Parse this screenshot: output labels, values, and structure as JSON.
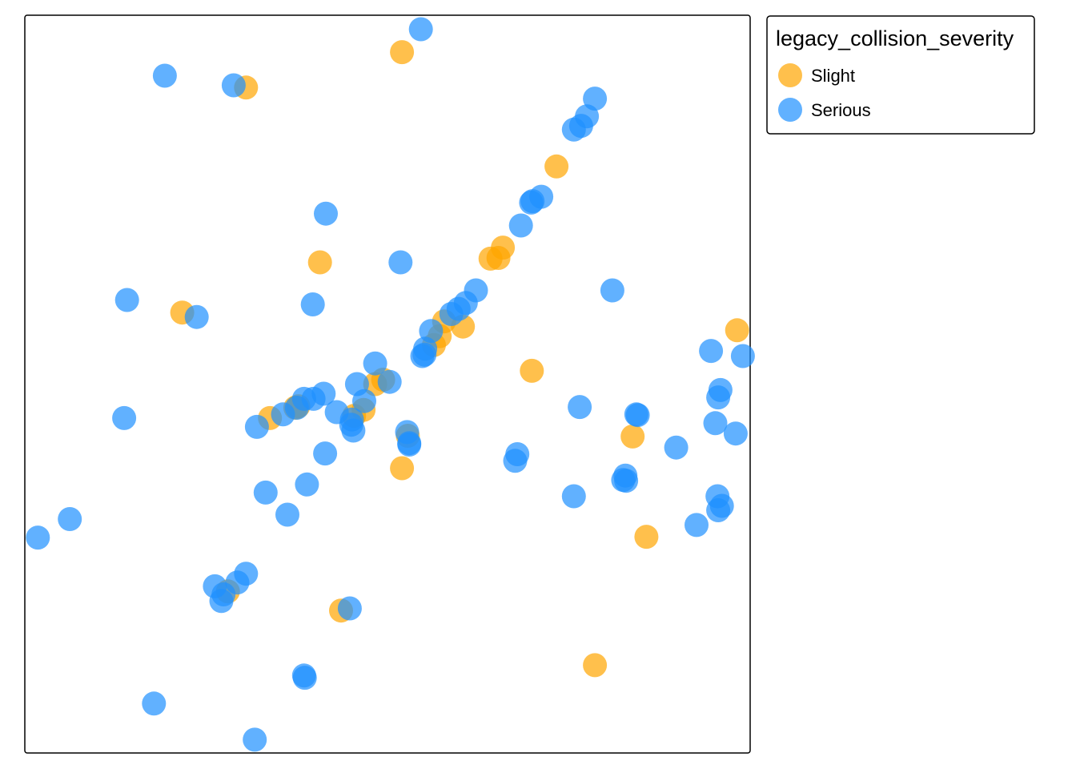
{
  "colors": {
    "Slight": "#FFA500",
    "Serious": "#1E90FF"
  },
  "chart_data": {
    "type": "scatter",
    "grid": false,
    "axes_shown": false,
    "xlim": [
      0,
      1
    ],
    "ylim": [
      0,
      1
    ],
    "legend": {
      "title": "legacy_collision_severity",
      "placement": "right",
      "entries": [
        "Slight",
        "Serious"
      ]
    },
    "series": [
      {
        "name": "Slight",
        "points": [
          [
            0.52,
            0.95
          ],
          [
            0.305,
            0.902
          ],
          [
            0.407,
            0.665
          ],
          [
            0.217,
            0.597
          ],
          [
            0.733,
            0.795
          ],
          [
            0.653,
            0.671
          ],
          [
            0.642,
            0.67
          ],
          [
            0.659,
            0.685
          ],
          [
            0.604,
            0.578
          ],
          [
            0.578,
            0.585
          ],
          [
            0.572,
            0.565
          ],
          [
            0.564,
            0.553
          ],
          [
            0.483,
            0.5
          ],
          [
            0.494,
            0.506
          ],
          [
            0.467,
            0.465
          ],
          [
            0.454,
            0.457
          ],
          [
            0.338,
            0.454
          ],
          [
            0.373,
            0.468
          ],
          [
            0.377,
            0.47
          ],
          [
            0.528,
            0.43
          ],
          [
            0.52,
            0.386
          ],
          [
            0.699,
            0.518
          ],
          [
            0.982,
            0.573
          ],
          [
            0.838,
            0.429
          ],
          [
            0.857,
            0.293
          ],
          [
            0.436,
            0.193
          ],
          [
            0.786,
            0.119
          ],
          [
            0.28,
            0.219
          ]
        ]
      },
      {
        "name": "Serious",
        "points": [
          [
            0.546,
            0.981
          ],
          [
            0.193,
            0.918
          ],
          [
            0.288,
            0.905
          ],
          [
            0.415,
            0.731
          ],
          [
            0.518,
            0.665
          ],
          [
            0.141,
            0.614
          ],
          [
            0.237,
            0.591
          ],
          [
            0.397,
            0.608
          ],
          [
            0.786,
            0.887
          ],
          [
            0.775,
            0.863
          ],
          [
            0.767,
            0.85
          ],
          [
            0.757,
            0.845
          ],
          [
            0.712,
            0.754
          ],
          [
            0.698,
            0.746
          ],
          [
            0.7,
            0.748
          ],
          [
            0.684,
            0.715
          ],
          [
            0.81,
            0.627
          ],
          [
            0.622,
            0.627
          ],
          [
            0.608,
            0.61
          ],
          [
            0.598,
            0.602
          ],
          [
            0.588,
            0.595
          ],
          [
            0.56,
            0.572
          ],
          [
            0.552,
            0.548
          ],
          [
            0.548,
            0.538
          ],
          [
            0.551,
            0.54
          ],
          [
            0.483,
            0.528
          ],
          [
            0.503,
            0.503
          ],
          [
            0.458,
            0.5
          ],
          [
            0.468,
            0.477
          ],
          [
            0.412,
            0.487
          ],
          [
            0.398,
            0.48
          ],
          [
            0.385,
            0.48
          ],
          [
            0.375,
            0.468
          ],
          [
            0.356,
            0.459
          ],
          [
            0.32,
            0.442
          ],
          [
            0.43,
            0.462
          ],
          [
            0.451,
            0.452
          ],
          [
            0.453,
            0.437
          ],
          [
            0.45,
            0.445
          ],
          [
            0.527,
            0.435
          ],
          [
            0.53,
            0.418
          ],
          [
            0.53,
            0.42
          ],
          [
            0.137,
            0.454
          ],
          [
            0.765,
            0.469
          ],
          [
            0.845,
            0.458
          ],
          [
            0.843,
            0.459
          ],
          [
            0.946,
            0.545
          ],
          [
            0.99,
            0.538
          ],
          [
            0.959,
            0.492
          ],
          [
            0.956,
            0.482
          ],
          [
            0.952,
            0.447
          ],
          [
            0.98,
            0.433
          ],
          [
            0.898,
            0.414
          ],
          [
            0.679,
            0.405
          ],
          [
            0.676,
            0.396
          ],
          [
            0.828,
            0.376
          ],
          [
            0.829,
            0.369
          ],
          [
            0.825,
            0.37
          ],
          [
            0.757,
            0.348
          ],
          [
            0.414,
            0.406
          ],
          [
            0.389,
            0.364
          ],
          [
            0.332,
            0.353
          ],
          [
            0.362,
            0.323
          ],
          [
            0.062,
            0.317
          ],
          [
            0.018,
            0.292
          ],
          [
            0.955,
            0.348
          ],
          [
            0.961,
            0.335
          ],
          [
            0.956,
            0.329
          ],
          [
            0.926,
            0.309
          ],
          [
            0.305,
            0.243
          ],
          [
            0.293,
            0.231
          ],
          [
            0.262,
            0.226
          ],
          [
            0.274,
            0.215
          ],
          [
            0.271,
            0.206
          ],
          [
            0.448,
            0.196
          ],
          [
            0.385,
            0.105
          ],
          [
            0.386,
            0.102
          ],
          [
            0.178,
            0.067
          ],
          [
            0.317,
            0.018
          ]
        ]
      }
    ]
  }
}
